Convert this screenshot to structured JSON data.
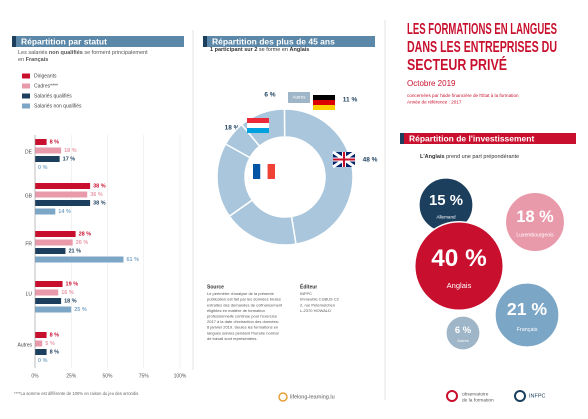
{
  "header": {
    "title_lines": [
      "LES FORMATIONS EN LANGUES",
      "DANS LES ENTREPRISES DU",
      "SECTEUR PRIVÉ"
    ],
    "date": "Octobre 2019",
    "notes": [
      "concernées par l'aide financière de l'État à la formation",
      "Année de référence : 2017"
    ]
  },
  "chart_data": [
    {
      "type": "bar",
      "title": "Répartition par statut",
      "subtitle": [
        "Les salariés ",
        "non qualifiés",
        " se forment principalement",
        "en ",
        "Français"
      ],
      "categories": [
        "DE",
        "GB",
        "FR",
        "LU",
        "Autres"
      ],
      "series": [
        {
          "name": "Dirigeants",
          "color": "#c8102e",
          "values": [
            8,
            38,
            28,
            19,
            8
          ],
          "value_labels": [
            "8 %",
            "38 %",
            "28 %",
            "19 %",
            "8 %"
          ]
        },
        {
          "name": "Cadres****",
          "color": "#e89aab",
          "values": [
            18,
            36,
            26,
            16,
            5
          ],
          "value_labels": [
            "18 %",
            "36 %",
            "26 %",
            "16 %",
            "5 %"
          ]
        },
        {
          "name": "Salariés qualifiés",
          "color": "#1c3f5e",
          "values": [
            17,
            38,
            21,
            18,
            8
          ],
          "value_labels": [
            "17 %",
            "38 %",
            "21 %",
            "18 %",
            "8 %"
          ]
        },
        {
          "name": "Salariés non qualifiés",
          "color": "#7ca6c6",
          "values": [
            0,
            14,
            61,
            25,
            0
          ],
          "value_labels": [
            "0 %",
            "14 %",
            "61 %",
            "25 %",
            "0 %"
          ]
        }
      ],
      "xlim": [
        0,
        100
      ],
      "xticks": [
        {
          "value": 0,
          "label": "0%"
        },
        {
          "value": 25,
          "label": "25%"
        },
        {
          "value": 50,
          "label": "50%"
        },
        {
          "value": 75,
          "label": "75%"
        },
        {
          "value": 100,
          "label": "100%"
        }
      ],
      "footnote": "****La somme est différente de 100% en raison du jeu des arrondis."
    },
    {
      "type": "pie",
      "title": "Répartition des plus de 45 ans",
      "subtitle": [
        "1 participant sur 2",
        " se forme en ",
        "Anglais"
      ],
      "categories": [
        null,
        null,
        null,
        null,
        "Autres"
      ],
      "values": [
        11,
        48,
        18,
        18,
        6
      ],
      "value_labels": [
        "11 %",
        "48 %",
        "18 %",
        "18 %",
        "6 %"
      ],
      "color": "#a9c6dc"
    },
    {
      "type": "bubble",
      "title": "Répartition de l'investissement",
      "subtitle": [
        "L'Anglais",
        " prend une part prépondérante"
      ],
      "categories": [
        "Allemand",
        "Luxembourgeois",
        "Anglais",
        "Français",
        "Autres"
      ],
      "values": [
        15,
        18,
        40,
        21,
        6
      ],
      "value_labels": [
        "15 %",
        "18 %",
        "40 %",
        "21 %",
        "6 %"
      ],
      "colors": [
        "#1c3f5e",
        "#e89aab",
        "#c8102e",
        "#7ca6c6",
        "#9fb6c8"
      ]
    }
  ],
  "source": {
    "title": "Source",
    "lines": [
      "Le périmètre d'analyse de la présente",
      "publication est fait par les données brutes",
      "extraites des demandes de cofinancement",
      "éligibles en matière de formation",
      "professionnelle continue pour l'exercice",
      "2017 à la date d'extraction des données:",
      "8 janvier 2019. Seules les formations en",
      "langues suivies pendant l'horaire normal",
      "de travail sont représentées."
    ]
  },
  "editor": {
    "title": "Éditeur",
    "lines": [
      "INFPC",
      "Immeuble CUBUS C2",
      "2, rue Peternelchen",
      "L-2370 HOWALD"
    ]
  },
  "footer": {
    "site": "lifelong-learning.lu",
    "observatory": [
      "observatoire",
      "de la formation"
    ],
    "org": "INFPC"
  }
}
